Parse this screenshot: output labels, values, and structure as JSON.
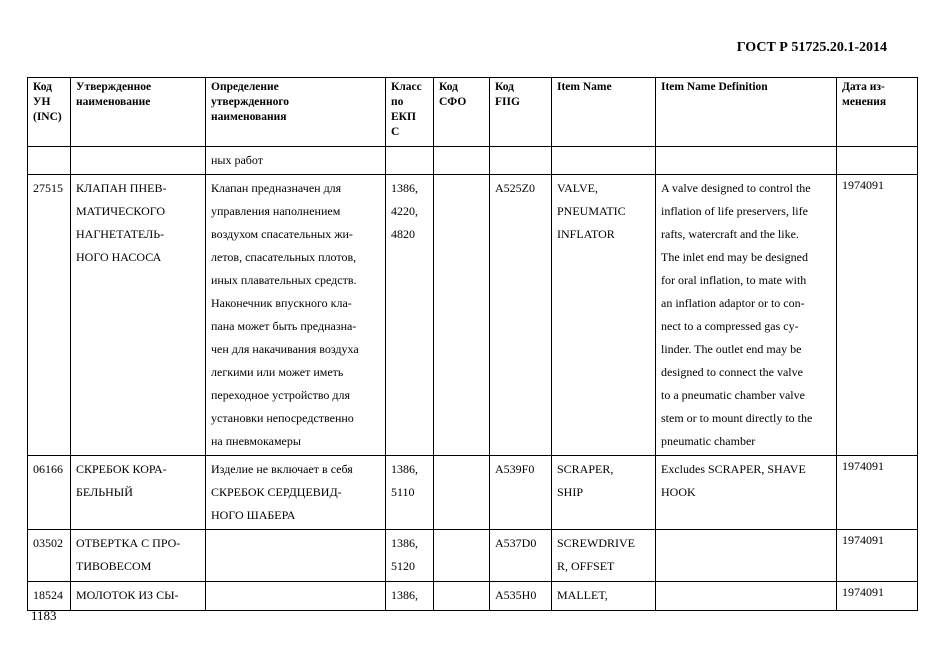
{
  "header": "ГОСТ Р 51725.20.1-2014",
  "page_number": "1183",
  "columns": [
    [
      "Код",
      "УН",
      "(INC)"
    ],
    [
      "Утвержденное",
      "наименование"
    ],
    [
      "Определение",
      "утвержденного",
      "наименования"
    ],
    [
      "Класс",
      "по",
      "ЕКП",
      "С"
    ],
    [
      "Код",
      "СФО"
    ],
    [
      "Код",
      "FIIG"
    ],
    [
      "Item Name"
    ],
    [
      "Item Name Definition"
    ],
    [
      "Дата из-",
      "менения"
    ]
  ],
  "rows": [
    [
      [],
      [],
      [
        "ных работ"
      ],
      [],
      [],
      [],
      [],
      [],
      []
    ],
    [
      [
        "27515"
      ],
      [
        "КЛАПАН ПНЕВ-",
        "МАТИЧЕСКОГО",
        "НАГНЕТАТЕЛЬ-",
        "НОГО НАСОСА"
      ],
      [
        "Клапан предназначен для",
        "управления наполнением",
        "воздухом спасательных жи-",
        "летов, спасательных плотов,",
        "иных плавательных средств.",
        "Наконечник впускного кла-",
        "пана может быть предназна-",
        "чен для накачивания воздуха",
        "легкими или может иметь",
        "переходное устройство для",
        "установки непосредственно",
        "на пневмокамеры"
      ],
      [
        "1386,",
        "4220,",
        "4820"
      ],
      [],
      [
        "A525Z0"
      ],
      [
        "VALVE,",
        "PNEUMATIC",
        "INFLATOR"
      ],
      [
        "A valve designed to control the",
        "inflation of life preservers, life",
        "rafts, watercraft and the like.",
        "The inlet end may be designed",
        "for oral inflation, to mate with",
        "an inflation adaptor or to con-",
        "nect to a compressed gas cy-",
        "linder. The outlet end may be",
        "designed to connect the valve",
        "to a pneumatic chamber valve",
        "stem or to mount directly to the",
        "pneumatic chamber"
      ],
      [
        "1974091"
      ]
    ],
    [
      [
        "06166"
      ],
      [
        "СКРЕБОК КОРА-",
        "БЕЛЬНЫЙ"
      ],
      [
        "Изделие не включает в себя",
        "СКРЕБОК СЕРДЦЕВИД-",
        "НОГО ШАБЕРА"
      ],
      [
        "1386,",
        "5110"
      ],
      [],
      [
        "A539F0"
      ],
      [
        "SCRAPER,",
        "SHIP"
      ],
      [
        "Excludes SCRAPER, SHAVE",
        "HOOK"
      ],
      [
        "1974091"
      ]
    ],
    [
      [
        "03502"
      ],
      [
        "ОТВЕРТКА С ПРО-",
        "ТИВОВЕСОМ"
      ],
      [],
      [
        "1386,",
        "5120"
      ],
      [],
      [
        "A537D0"
      ],
      [
        "SCREWDRIVE",
        "R, OFFSET"
      ],
      [],
      [
        "1974091"
      ]
    ],
    [
      [
        "18524"
      ],
      [
        "МОЛОТОК ИЗ СЫ-"
      ],
      [],
      [
        "1386,"
      ],
      [],
      [
        "A535H0"
      ],
      [
        "MALLET,"
      ],
      [],
      [
        "1974091"
      ]
    ]
  ]
}
